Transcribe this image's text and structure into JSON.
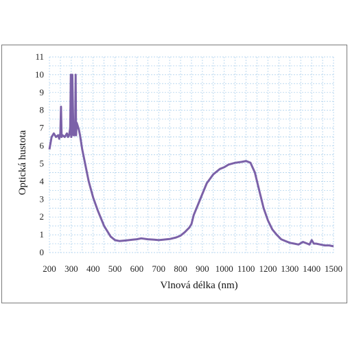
{
  "chart_data": {
    "type": "line",
    "title": "",
    "xlabel": "Vlnová délka (nm)",
    "ylabel": "Optická hustota",
    "xlim": [
      200,
      1500
    ],
    "ylim": [
      0,
      11
    ],
    "x_ticks": [
      200,
      300,
      400,
      500,
      600,
      700,
      800,
      900,
      1000,
      1100,
      1200,
      1300,
      1400,
      1500
    ],
    "y_ticks": [
      0,
      1,
      2,
      3,
      4,
      5,
      6,
      7,
      8,
      9,
      10,
      11
    ],
    "grid": "dashed",
    "line_color": "#7b61a8",
    "series": [
      {
        "x": [
          200,
          210,
          220,
          230,
          240,
          245,
          250,
          253,
          256,
          260,
          270,
          280,
          285,
          290,
          295,
          298,
          300,
          302,
          305,
          310,
          315,
          318,
          320,
          322,
          325,
          330,
          335,
          340,
          345,
          350,
          360,
          370,
          380,
          400,
          420,
          450,
          480,
          500,
          520,
          550,
          580,
          600,
          620,
          650,
          680,
          700,
          720,
          750,
          780,
          800,
          820,
          840,
          850,
          860,
          880,
          900,
          920,
          950,
          980,
          1000,
          1020,
          1050,
          1080,
          1100,
          1120,
          1140,
          1160,
          1180,
          1200,
          1220,
          1240,
          1260,
          1280,
          1300,
          1320,
          1340,
          1360,
          1380,
          1390,
          1400,
          1410,
          1420,
          1440,
          1460,
          1480,
          1500
        ],
        "y": [
          5.8,
          6.5,
          6.7,
          6.5,
          6.6,
          6.4,
          6.7,
          8.2,
          6.5,
          6.6,
          6.5,
          6.7,
          6.5,
          6.6,
          7.0,
          10.0,
          6.5,
          6.8,
          10.0,
          6.6,
          6.6,
          7.0,
          10.0,
          6.6,
          7.3,
          7.1,
          6.9,
          6.6,
          6.2,
          5.8,
          5.2,
          4.6,
          4.0,
          3.1,
          2.4,
          1.5,
          0.9,
          0.7,
          0.65,
          0.68,
          0.72,
          0.75,
          0.8,
          0.75,
          0.72,
          0.7,
          0.72,
          0.76,
          0.85,
          0.95,
          1.15,
          1.4,
          1.6,
          2.1,
          2.7,
          3.3,
          3.9,
          4.4,
          4.7,
          4.8,
          4.95,
          5.05,
          5.1,
          5.15,
          5.05,
          4.5,
          3.5,
          2.5,
          1.8,
          1.3,
          1.0,
          0.75,
          0.65,
          0.55,
          0.5,
          0.45,
          0.6,
          0.5,
          0.45,
          0.7,
          0.5,
          0.5,
          0.45,
          0.4,
          0.4,
          0.35
        ]
      }
    ]
  }
}
